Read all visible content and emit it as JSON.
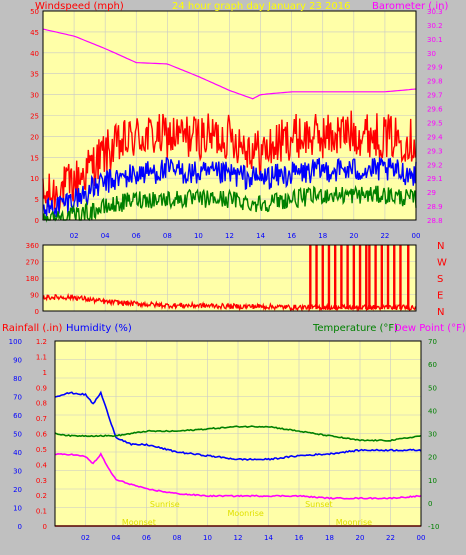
{
  "colors": {
    "background": "#c0c0c0",
    "plot_bg": "#ffffa8",
    "grid": "#c8c8c8",
    "wind_gust": "#ff0000",
    "wind_avg": "#0000ff",
    "wind_min": "#008000",
    "barometer": "#ff00ff",
    "direction": "#ff0000",
    "rain": "#ff0000",
    "humidity": "#0000ff",
    "temperature": "#008000",
    "dewpoint": "#ff00ff",
    "caption": "#ffff00",
    "astro": "#e0e000"
  },
  "chart_data": [
    {
      "type": "line",
      "title": "24 hour graph day   January 23 2016",
      "left_label": "Windspeed (mph)",
      "right_label": "Barometer (.in)",
      "x_ticks": [
        "02",
        "04",
        "06",
        "08",
        "10",
        "12",
        "14",
        "16",
        "18",
        "20",
        "22",
        "00"
      ],
      "ylim_left": [
        0,
        50
      ],
      "y_ticks_left": [
        "0",
        "5",
        "10",
        "15",
        "20",
        "25",
        "30",
        "35",
        "40",
        "45",
        "50"
      ],
      "ylim_right": [
        28.8,
        30.3
      ],
      "y_ticks_right": [
        "28.8",
        "28.9",
        "29",
        "29.1",
        "29.2",
        "29.3",
        "29.4",
        "29.5",
        "29.6",
        "29.7",
        "29.8",
        "29.9",
        "30",
        "30.1",
        "30.2",
        "30.3"
      ],
      "x_hours": [
        0,
        2,
        4,
        6,
        8,
        10,
        12,
        13.5,
        14,
        16,
        18,
        20,
        22,
        24
      ],
      "series": [
        {
          "key": "gust",
          "axis": "left",
          "color_key": "wind_gust",
          "values": [
            5,
            9,
            16,
            20,
            20,
            20,
            20,
            17,
            16,
            20,
            20,
            21,
            20,
            19
          ]
        },
        {
          "key": "avg",
          "axis": "left",
          "color_key": "wind_avg",
          "values": [
            2,
            5,
            9,
            11,
            12,
            11,
            11,
            10,
            10,
            11,
            12,
            12,
            12,
            11
          ]
        },
        {
          "key": "min",
          "axis": "left",
          "color_key": "wind_min",
          "values": [
            0,
            1,
            3,
            5,
            5,
            5,
            5,
            4,
            4,
            5,
            6,
            6,
            6,
            5
          ]
        },
        {
          "key": "barometer",
          "axis": "right",
          "color_key": "barometer",
          "values": [
            30.17,
            30.12,
            30.03,
            29.93,
            29.92,
            29.83,
            29.73,
            29.67,
            29.7,
            29.72,
            29.72,
            29.72,
            29.72,
            29.74
          ]
        }
      ]
    },
    {
      "type": "line",
      "x_ticks": [
        "02",
        "04",
        "06",
        "08",
        "10",
        "12",
        "14",
        "16",
        "18",
        "20",
        "22",
        "00"
      ],
      "ylim": [
        0,
        360
      ],
      "y_ticks": [
        "0",
        "90",
        "180",
        "270",
        "360"
      ],
      "compass": [
        "N",
        "W",
        "S",
        "E",
        "N"
      ],
      "x_hours": [
        0,
        2,
        4,
        6,
        8,
        10,
        12,
        14,
        16,
        17,
        20,
        24
      ],
      "series": [
        {
          "key": "direction",
          "color_key": "direction",
          "values": [
            75,
            75,
            50,
            40,
            30,
            30,
            25,
            25,
            20,
            20,
            20,
            20
          ]
        }
      ],
      "spike_hours": [
        17.2,
        17.6,
        18.0,
        18.4,
        18.8,
        19.2,
        19.6,
        20.0,
        20.4,
        20.8,
        21.0,
        21.4,
        21.8,
        22.2,
        22.6,
        23.0,
        23.5
      ]
    },
    {
      "type": "line",
      "rain_label": "Rainfall (.in)",
      "humidity_label": "Humidity (%)",
      "temp_label": "Temperature (°F)",
      "dew_label": "Dew Point (°F)",
      "x_ticks": [
        "02",
        "04",
        "06",
        "08",
        "10",
        "12",
        "14",
        "16",
        "18",
        "20",
        "22",
        "00"
      ],
      "ylim_rain": [
        0,
        1.2
      ],
      "y_ticks_rain": [
        "0",
        "0.1",
        "0.2",
        "0.3",
        "0.4",
        "0.5",
        "0.6",
        "0.7",
        "0.8",
        "0.9",
        "1",
        "1.1",
        "1.2"
      ],
      "ylim_humidity": [
        0,
        100
      ],
      "y_ticks_humidity": [
        "0",
        "10",
        "20",
        "30",
        "40",
        "50",
        "60",
        "70",
        "80",
        "90",
        "100"
      ],
      "ylim_temp": [
        -10,
        70
      ],
      "y_ticks_temp": [
        "-10",
        "0",
        "10",
        "20",
        "30",
        "40",
        "50",
        "60",
        "70"
      ],
      "x_hours": [
        0,
        1,
        2,
        2.5,
        3,
        3.5,
        4,
        5,
        6,
        8,
        10,
        12,
        14,
        16,
        18,
        20,
        22,
        24
      ],
      "series": [
        {
          "key": "humidity",
          "axis": "humidity",
          "color_key": "humidity",
          "values": [
            70,
            72,
            71,
            66,
            72,
            60,
            48,
            44,
            44,
            40,
            38,
            36,
            36,
            38,
            39,
            41,
            41,
            41
          ]
        },
        {
          "key": "temperature",
          "axis": "temp",
          "color_key": "temperature",
          "values": [
            30,
            29,
            29,
            29,
            29,
            29,
            29,
            30,
            31,
            31,
            32,
            33,
            33,
            31,
            29,
            27,
            27,
            29
          ]
        },
        {
          "key": "dewpoint",
          "axis": "temp",
          "color_key": "dewpoint",
          "values": [
            21,
            21,
            20,
            17,
            21,
            15,
            10,
            8,
            6,
            4,
            3,
            3,
            3,
            3,
            2,
            2,
            2,
            3
          ]
        },
        {
          "key": "rain",
          "axis": "rain",
          "color_key": "rain",
          "values": [
            0,
            0,
            0,
            0,
            0,
            0,
            0,
            0,
            0,
            0,
            0,
            0,
            0,
            0,
            0,
            0,
            0,
            0
          ]
        }
      ],
      "astro": [
        {
          "label": "Sunrise",
          "hour": 7.2,
          "row": 0
        },
        {
          "label": "Sunset",
          "hour": 17.3,
          "row": 0
        },
        {
          "label": "Moonrise",
          "hour": 12.5,
          "row": 1
        },
        {
          "label": "Moonset",
          "hour": 5.5,
          "row": 2
        },
        {
          "label": "Moonrise",
          "hour": 19.6,
          "row": 2
        }
      ]
    }
  ]
}
